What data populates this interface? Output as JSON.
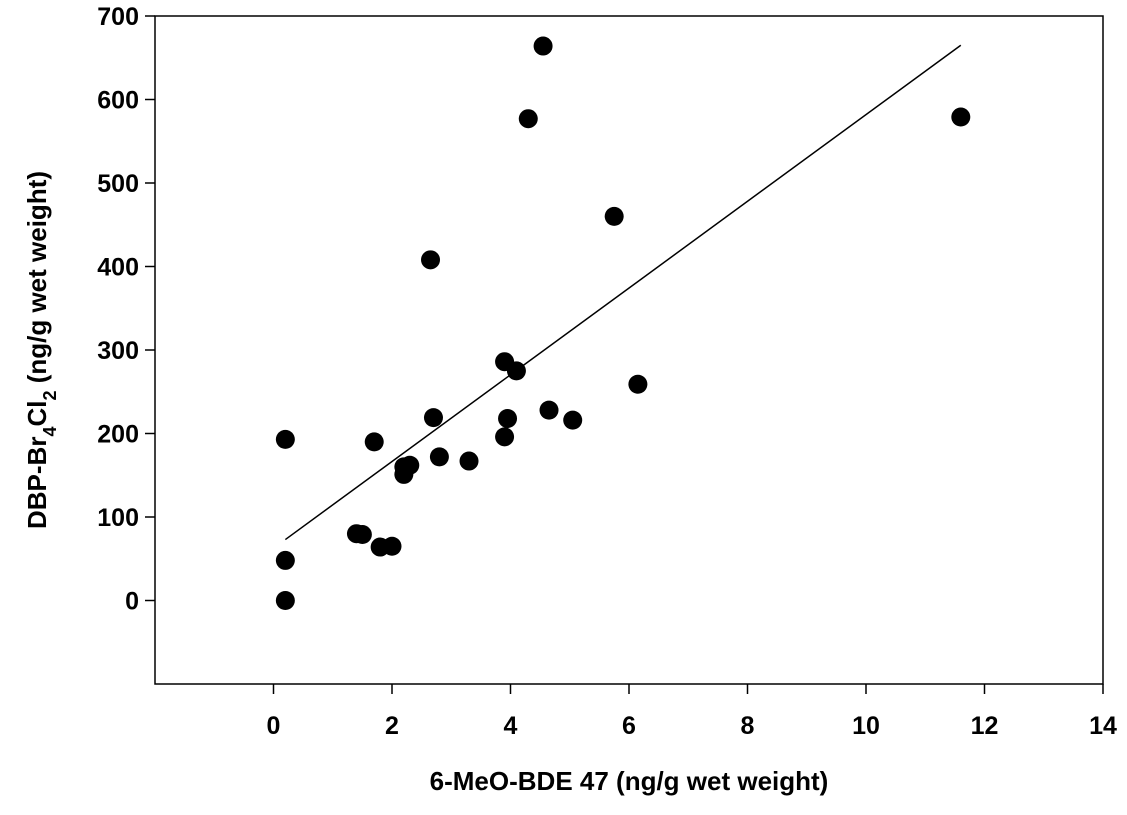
{
  "chart_data": {
    "type": "scatter",
    "title": "",
    "xlabel": "6-MeO-BDE 47 (ng/g wet weight)",
    "ylabel": {
      "prefix": "DBP-Br",
      "sub1": "4",
      "mid": "Cl",
      "sub2": "2",
      "suffix": " (ng/g wet weight)"
    },
    "xlim": [
      -2,
      14
    ],
    "ylim": [
      -100,
      700
    ],
    "xticks": [
      0,
      2,
      4,
      6,
      8,
      10,
      12,
      14
    ],
    "yticks": [
      0,
      100,
      200,
      300,
      400,
      500,
      600,
      700
    ],
    "grid": false,
    "legend": "none",
    "marker_color": "#000000",
    "series": [
      {
        "points": [
          {
            "x": 0.2,
            "y": 0
          },
          {
            "x": 0.2,
            "y": 48
          },
          {
            "x": 0.2,
            "y": 193
          },
          {
            "x": 1.4,
            "y": 80
          },
          {
            "x": 1.5,
            "y": 79
          },
          {
            "x": 1.7,
            "y": 190
          },
          {
            "x": 1.8,
            "y": 64
          },
          {
            "x": 2.0,
            "y": 65
          },
          {
            "x": 2.2,
            "y": 160
          },
          {
            "x": 2.2,
            "y": 151
          },
          {
            "x": 2.3,
            "y": 162
          },
          {
            "x": 2.65,
            "y": 408
          },
          {
            "x": 2.7,
            "y": 219
          },
          {
            "x": 2.8,
            "y": 172
          },
          {
            "x": 3.3,
            "y": 167
          },
          {
            "x": 3.9,
            "y": 286
          },
          {
            "x": 3.9,
            "y": 196
          },
          {
            "x": 3.95,
            "y": 218
          },
          {
            "x": 4.1,
            "y": 275
          },
          {
            "x": 4.3,
            "y": 577
          },
          {
            "x": 4.55,
            "y": 664
          },
          {
            "x": 4.65,
            "y": 228
          },
          {
            "x": 5.05,
            "y": 216
          },
          {
            "x": 5.75,
            "y": 460
          },
          {
            "x": 6.15,
            "y": 259
          },
          {
            "x": 11.6,
            "y": 579
          }
        ]
      }
    ],
    "trendline": {
      "x": [
        0.2,
        11.6
      ],
      "y": [
        73,
        665
      ]
    }
  }
}
